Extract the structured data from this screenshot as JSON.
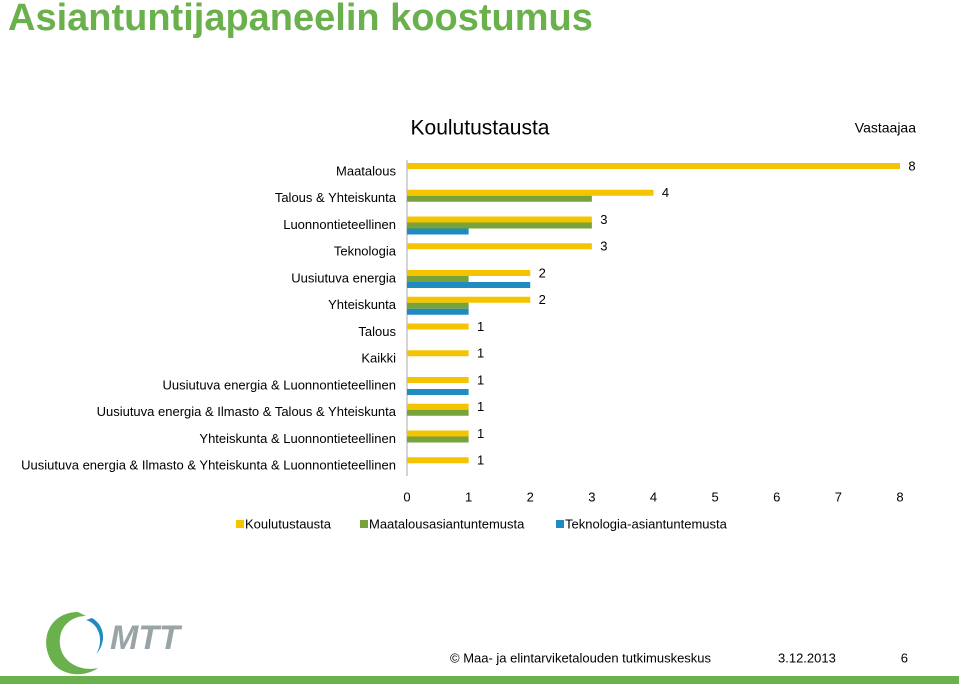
{
  "slide": {
    "title": "Asiantuntijapaneelin koostumus",
    "logo_text": "MTT",
    "footer": {
      "organization": "© Maa- ja elintarviketalouden tutkimuskeskus",
      "date": "3.12.2013",
      "page": "6"
    }
  },
  "chart_data": {
    "type": "hbar",
    "title": "Koulutustausta",
    "x_label": "Vastaajaa",
    "categories": [
      "Maatalous",
      "Talous & Yhteiskunta",
      "Luonnontieteellinen",
      "Teknologia",
      "Uusiutuva energia",
      "Yhteiskunta",
      "Talous",
      "Kaikki",
      "Uusiutuva energia & Luonnontieteellinen",
      "Uusiutuva energia & Ilmasto & Talous & Yhteiskunta",
      "Yhteiskunta & Luonnontieteellinen",
      "Uusiutuva energia & Ilmasto & Yhteiskunta & Luonnontieteellinen"
    ],
    "series": [
      {
        "name": "Koulutustausta",
        "color": "#f5c400",
        "data_labels": true,
        "values": [
          8,
          4,
          3,
          3,
          2,
          2,
          1,
          1,
          1,
          1,
          1,
          1
        ]
      },
      {
        "name": "Maatalousasiantuntemusta",
        "color": "#77a33a",
        "values": [
          null,
          3,
          3,
          null,
          1,
          1,
          null,
          null,
          null,
          1,
          1,
          null
        ]
      },
      {
        "name": "Teknologia-asiantuntemusta",
        "color": "#1f8bc0",
        "values": [
          null,
          null,
          1,
          null,
          2,
          1,
          null,
          null,
          1,
          null,
          null,
          null
        ]
      }
    ],
    "xlim": [
      0,
      8
    ],
    "xticks": [
      0,
      1,
      2,
      3,
      4,
      5,
      6,
      7,
      8
    ],
    "grid": false
  }
}
